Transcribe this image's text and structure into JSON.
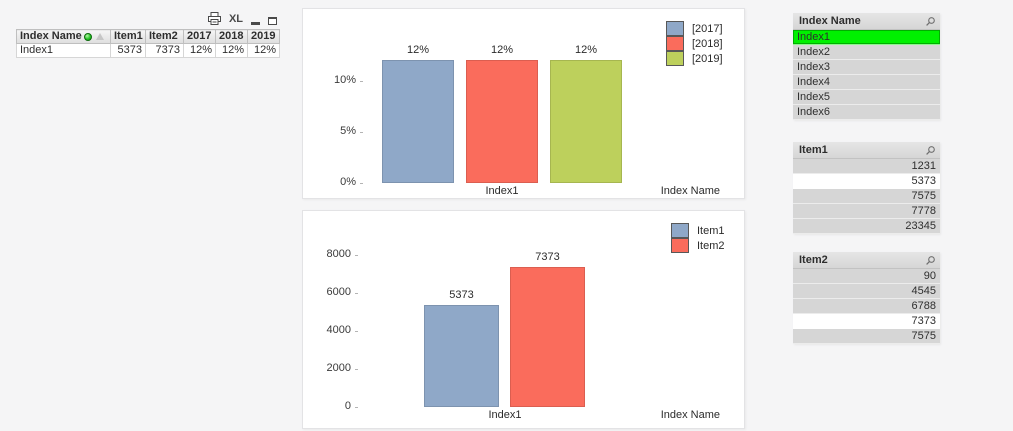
{
  "table": {
    "caption": {
      "excel_label": "XL"
    },
    "columns": [
      {
        "label": "Index Name"
      },
      {
        "label": "Item1"
      },
      {
        "label": "Item2"
      },
      {
        "label": "2017"
      },
      {
        "label": "2018"
      },
      {
        "label": "2019"
      }
    ],
    "rows": [
      [
        "Index1",
        "5373",
        "7373",
        "12%",
        "12%",
        "12%"
      ]
    ]
  },
  "chart_data": [
    {
      "type": "bar",
      "title": "",
      "categories": [
        "Index1"
      ],
      "xlabel": "Index Name",
      "ylabel": "",
      "ylim": [
        0,
        12.2
      ],
      "grid": false,
      "legend_position": "top-right",
      "series": [
        {
          "name": "[2017]",
          "value": 12,
          "label": "12%",
          "color": "#8fa8c8"
        },
        {
          "name": "[2018]",
          "value": 12,
          "label": "12%",
          "color": "#fa6c5c"
        },
        {
          "name": "[2019]",
          "value": 12,
          "label": "12%",
          "color": "#bdd05c"
        }
      ],
      "yticks": [
        {
          "value": 0,
          "label": "0%"
        },
        {
          "value": 5,
          "label": "5%"
        },
        {
          "value": 10,
          "label": "10%"
        }
      ]
    },
    {
      "type": "bar",
      "title": "",
      "categories": [
        "Index1"
      ],
      "xlabel": "Index Name",
      "ylabel": "",
      "ylim": [
        0,
        8400
      ],
      "grid": false,
      "legend_position": "top-right",
      "series": [
        {
          "name": "Item1",
          "value": 5373,
          "label": "5373",
          "color": "#8fa8c8"
        },
        {
          "name": "Item2",
          "value": 7373,
          "label": "7373",
          "color": "#fa6c5c"
        }
      ],
      "yticks": [
        {
          "value": 0,
          "label": "0"
        },
        {
          "value": 2000,
          "label": "2000"
        },
        {
          "value": 4000,
          "label": "4000"
        },
        {
          "value": 6000,
          "label": "6000"
        },
        {
          "value": 8000,
          "label": "8000"
        }
      ]
    }
  ],
  "listboxes": [
    {
      "title": "Index Name",
      "items": [
        {
          "label": "Index1",
          "state": "selected"
        },
        {
          "label": "Index2",
          "state": "excluded"
        },
        {
          "label": "Index3",
          "state": "excluded"
        },
        {
          "label": "Index4",
          "state": "excluded"
        },
        {
          "label": "Index5",
          "state": "excluded"
        },
        {
          "label": "Index6",
          "state": "excluded"
        }
      ]
    },
    {
      "title": "Item1",
      "items": [
        {
          "label": "1231",
          "state": "excluded"
        },
        {
          "label": "5373",
          "state": "possible"
        },
        {
          "label": "7575",
          "state": "excluded"
        },
        {
          "label": "7778",
          "state": "excluded"
        },
        {
          "label": "23345",
          "state": "excluded"
        }
      ]
    },
    {
      "title": "Item2",
      "items": [
        {
          "label": "90",
          "state": "excluded"
        },
        {
          "label": "4545",
          "state": "excluded"
        },
        {
          "label": "6788",
          "state": "excluded"
        },
        {
          "label": "7373",
          "state": "possible"
        },
        {
          "label": "7575",
          "state": "excluded"
        }
      ]
    }
  ],
  "colors": {
    "selected_green": "#00f000",
    "possible_white": "#ffffff",
    "excluded_gray": "#d6d6d6",
    "bar_blue": "#8fa8c8",
    "bar_red": "#fa6c5c",
    "bar_green": "#bdd05c",
    "page_background": "#f5f5f6"
  }
}
